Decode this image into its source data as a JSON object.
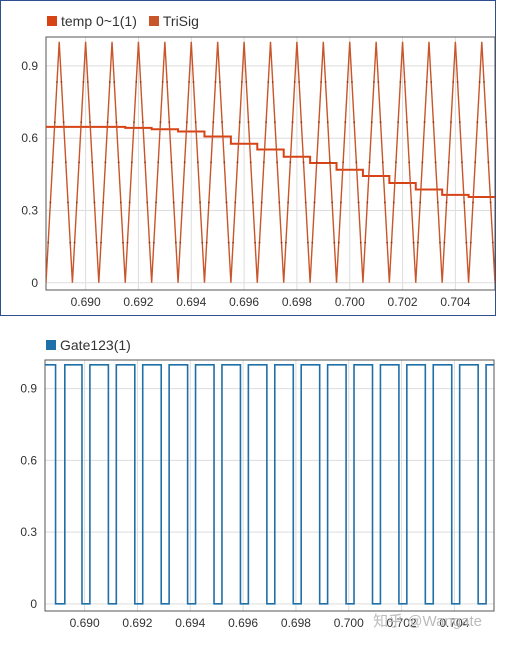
{
  "colors": {
    "temp": "#d84315",
    "trisig": "#c9552a",
    "gate": "#1f6fa8",
    "grid": "#dddddd",
    "panel_border": "#2f4f8f"
  },
  "watermark": "知乎 @Wangate",
  "chart_data": [
    {
      "type": "line",
      "legend": [
        {
          "name": "temp 0~1(1)",
          "color": "#d84315"
        },
        {
          "name": "TriSig",
          "color": "#c9552a"
        }
      ],
      "xlim": [
        0.6885,
        0.7055
      ],
      "ylim": [
        -0.03,
        1.02
      ],
      "x_ticks": [
        "0.690",
        "0.692",
        "0.694",
        "0.696",
        "0.698",
        "0.700",
        "0.702",
        "0.704"
      ],
      "x_tick_values": [
        0.69,
        0.692,
        0.694,
        0.696,
        0.698,
        0.7,
        0.702,
        0.704
      ],
      "y_ticks": [
        "0",
        "0.3",
        "0.6",
        "0.9"
      ],
      "y_tick_values": [
        0,
        0.3,
        0.6,
        0.9
      ],
      "grid": true,
      "legend_position": "top-left",
      "series": [
        {
          "name": "temp 0~1(1)",
          "style": "step",
          "x": [
            0.6885,
            0.6905,
            0.6915,
            0.6925,
            0.6935,
            0.6945,
            0.6955,
            0.6965,
            0.6975,
            0.6985,
            0.6995,
            0.7005,
            0.7015,
            0.7025,
            0.7035,
            0.7045,
            0.7055
          ],
          "y": [
            0.647,
            0.647,
            0.643,
            0.637,
            0.628,
            0.607,
            0.577,
            0.553,
            0.523,
            0.497,
            0.469,
            0.443,
            0.414,
            0.387,
            0.365,
            0.356,
            0.349
          ]
        },
        {
          "name": "TriSig",
          "style": "triangle",
          "x": [
            0.6885,
            0.689,
            0.6895,
            0.69,
            0.6905,
            0.691,
            0.6915,
            0.692,
            0.6925,
            0.693,
            0.6935,
            0.694,
            0.6945,
            0.695,
            0.6955,
            0.696,
            0.6965,
            0.697,
            0.6975,
            0.698,
            0.6985,
            0.699,
            0.6995,
            0.7,
            0.7005,
            0.701,
            0.7015,
            0.702,
            0.7025,
            0.703,
            0.7035,
            0.704,
            0.7045,
            0.705,
            0.7055
          ],
          "y": [
            0,
            1,
            0,
            1,
            0,
            1,
            0,
            1,
            0,
            1,
            0,
            1,
            0,
            1,
            0,
            1,
            0,
            1,
            0,
            1,
            0,
            1,
            0,
            1,
            0,
            1,
            0,
            1,
            0,
            1,
            0,
            1,
            0,
            1,
            0
          ]
        }
      ]
    },
    {
      "type": "line",
      "legend": [
        {
          "name": "Gate123(1)",
          "color": "#1f6fa8"
        }
      ],
      "xlim": [
        0.6885,
        0.7055
      ],
      "ylim": [
        -0.03,
        1.02
      ],
      "x_ticks": [
        "0.690",
        "0.692",
        "0.694",
        "0.696",
        "0.698",
        "0.700",
        "0.702",
        "0.704"
      ],
      "x_tick_values": [
        0.69,
        0.692,
        0.694,
        0.696,
        0.698,
        0.7,
        0.702,
        0.704
      ],
      "y_ticks": [
        "0",
        "0.3",
        "0.6",
        "0.9"
      ],
      "y_tick_values": [
        0,
        0.3,
        0.6,
        0.9
      ],
      "grid": true,
      "legend_position": "top-left",
      "series": [
        {
          "name": "Gate123(1)",
          "style": "pulse",
          "pulse_period": 0.001,
          "low_intervals": [
            [
              0.6889,
              0.68925
            ],
            [
              0.6899,
              0.6902
            ],
            [
              0.6909,
              0.6912
            ],
            [
              0.6919,
              0.6922
            ],
            [
              0.6929,
              0.6932
            ],
            [
              0.6939,
              0.6942
            ],
            [
              0.6949,
              0.6952
            ],
            [
              0.6959,
              0.6962
            ],
            [
              0.6969,
              0.6972
            ],
            [
              0.6979,
              0.6982
            ],
            [
              0.6989,
              0.6992
            ],
            [
              0.6999,
              0.7002
            ],
            [
              0.7009,
              0.7012
            ],
            [
              0.7019,
              0.7022
            ],
            [
              0.7029,
              0.7032
            ],
            [
              0.7039,
              0.7042
            ],
            [
              0.7049,
              0.7052
            ]
          ]
        }
      ]
    }
  ]
}
